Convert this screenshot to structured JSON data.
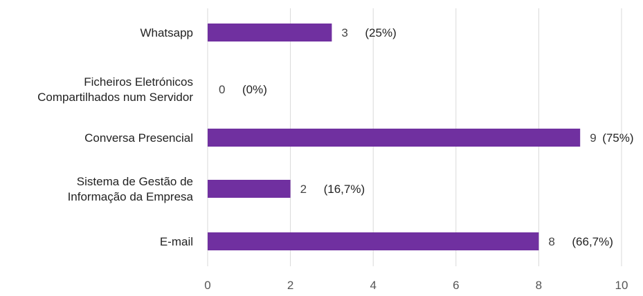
{
  "chart_data": {
    "type": "bar",
    "orientation": "horizontal",
    "categories": [
      [
        "Whatsapp"
      ],
      [
        "Ficheiros Eletrónicos",
        "Compartilhados num Servidor"
      ],
      [
        "Conversa Presencial"
      ],
      [
        "Sistema de Gestão de",
        "Informação da Empresa"
      ],
      [
        "E-mail"
      ]
    ],
    "values": [
      3,
      0,
      9,
      2,
      8
    ],
    "value_labels": [
      "3",
      "0",
      "9",
      "2",
      "8"
    ],
    "percent_labels": [
      "(25%)",
      "(0%)",
      "(75%)",
      "(16,7%)",
      "(66,7%)"
    ],
    "xticks": [
      "0",
      "2",
      "4",
      "6",
      "8",
      "10"
    ],
    "xlim": [
      0,
      10
    ],
    "grid": "vertical",
    "legend": "none",
    "bar_color": "#7030a0",
    "title": "",
    "xlabel": "",
    "ylabel": ""
  }
}
